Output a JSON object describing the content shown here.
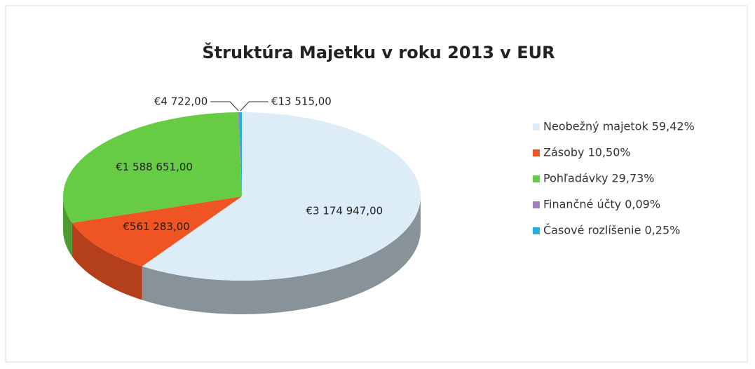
{
  "chart_data": {
    "type": "pie",
    "title": "Štruktúra Majetku v roku 2013 v EUR",
    "categories": [
      "Neobežný majetok 59,42%",
      "Zásoby 10,50%",
      "Pohľadávky 29,73%",
      "Finančné účty 0,09%",
      "Časové rozlíšenie 0,25%"
    ],
    "values": [
      3174947,
      561283,
      1588651,
      4722,
      13515
    ],
    "value_labels": [
      "€3 174 947,00",
      "€561 283,00",
      "€1 588 651,00",
      "€4 722,00",
      "€13 515,00"
    ],
    "colors": [
      "#dcedf7",
      "#ee5522",
      "#66cc44",
      "#a07fc0",
      "#2aaee0"
    ],
    "legend": "right"
  }
}
